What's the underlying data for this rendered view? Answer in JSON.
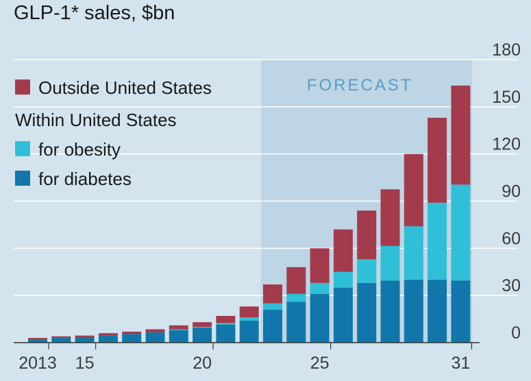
{
  "colors": {
    "background": "#d4e4ee",
    "forecast_band": "#bdd5e4",
    "gridline": "#ffffff",
    "outside_us": "#a33b4d",
    "us_obesity": "#2fbfd6",
    "us_diabetes": "#1177ab"
  },
  "chart_data": {
    "type": "bar",
    "stacked": true,
    "title": "GLP-1* sales, $bn",
    "categories": [
      "2013",
      "2014",
      "2015",
      "2016",
      "2017",
      "2018",
      "2019",
      "2020",
      "2021",
      "2022",
      "2023",
      "2024",
      "2025",
      "2026",
      "2027",
      "2028",
      "2029",
      "2030",
      "2031"
    ],
    "x_tick_labels": [
      {
        "category": "2013",
        "label": "2013"
      },
      {
        "category": "2015",
        "label": "15"
      },
      {
        "category": "2020",
        "label": "20"
      },
      {
        "category": "2025",
        "label": "25"
      },
      {
        "category": "2031",
        "label": "31"
      }
    ],
    "y_ticks": [
      0,
      30,
      60,
      90,
      120,
      150,
      180
    ],
    "ylim": [
      0,
      180
    ],
    "y_axis_side": "right",
    "grid": true,
    "forecast": {
      "label": "FORECAST",
      "start_category": "2023",
      "end_category": "2031"
    },
    "legend": {
      "position": "top-left",
      "group_heading": "Within United States",
      "entries": [
        "Outside United States",
        "for obesity",
        "for diabetes"
      ]
    },
    "series": [
      {
        "name": "for diabetes",
        "values": [
          2,
          3,
          3.5,
          4.5,
          5.5,
          6.5,
          8,
          9.5,
          11.5,
          14,
          21,
          26,
          31,
          35,
          38,
          39.5,
          40,
          40,
          39.5
        ]
      },
      {
        "name": "for obesity",
        "values": [
          0,
          0,
          0,
          0,
          0,
          0,
          0.5,
          0.5,
          1,
          2,
          4,
          5,
          7,
          10,
          15,
          22,
          34,
          49,
          61
        ]
      },
      {
        "name": "Outside United States",
        "values": [
          1,
          1,
          1,
          1.5,
          1.5,
          2,
          2.5,
          3,
          4.5,
          7,
          12,
          17,
          22,
          27,
          31,
          36,
          46,
          54,
          63
        ]
      }
    ]
  }
}
